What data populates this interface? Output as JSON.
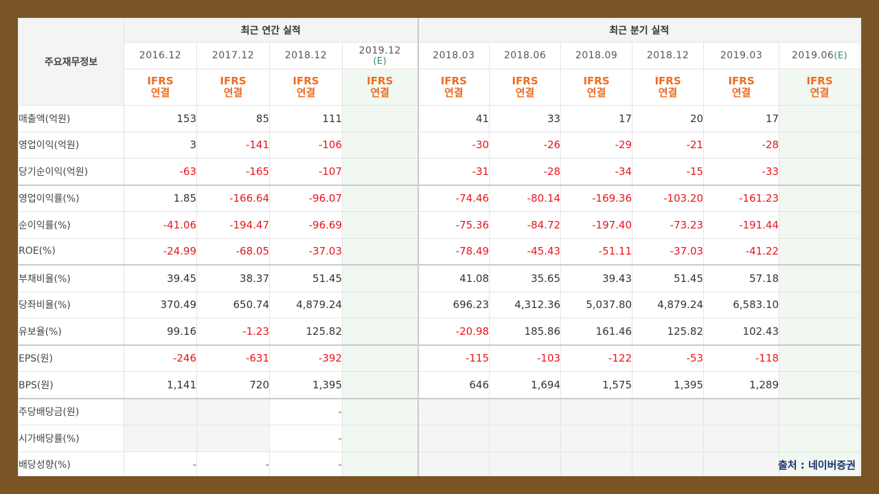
{
  "table": {
    "corner_label": "주요재무정보",
    "annual_group": "최근 연간 실적",
    "quarter_group": "최근 분기 실적",
    "periods": [
      "2016.12",
      "2017.12",
      "2018.12",
      "2019.12",
      "2018.03",
      "2018.06",
      "2018.09",
      "2018.12",
      "2019.03",
      "2019.06"
    ],
    "estimate_mark": "(E)",
    "ifrs_top": "IFRS",
    "ifrs_bottom": "연결",
    "rows": [
      {
        "label": "매출액(억원)",
        "values": [
          "153",
          "85",
          "111",
          "",
          "41",
          "33",
          "17",
          "20",
          "17",
          ""
        ]
      },
      {
        "label": "영업이익(억원)",
        "values": [
          "3",
          "-141",
          "-106",
          "",
          "-30",
          "-26",
          "-29",
          "-21",
          "-28",
          ""
        ]
      },
      {
        "label": "당기순이익(억원)",
        "values": [
          "-63",
          "-165",
          "-107",
          "",
          "-31",
          "-28",
          "-34",
          "-15",
          "-33",
          ""
        ]
      },
      {
        "label": "영업이익률(%)",
        "values": [
          "1.85",
          "-166.64",
          "-96.07",
          "",
          "-74.46",
          "-80.14",
          "-169.36",
          "-103.20",
          "-161.23",
          ""
        ]
      },
      {
        "label": "순이익률(%)",
        "values": [
          "-41.06",
          "-194.47",
          "-96.69",
          "",
          "-75.36",
          "-84.72",
          "-197.40",
          "-73.23",
          "-191.44",
          ""
        ]
      },
      {
        "label": "ROE(%)",
        "values": [
          "-24.99",
          "-68.05",
          "-37.03",
          "",
          "-78.49",
          "-45.43",
          "-51.11",
          "-37.03",
          "-41.22",
          ""
        ]
      },
      {
        "label": "부채비율(%)",
        "values": [
          "39.45",
          "38.37",
          "51.45",
          "",
          "41.08",
          "35.65",
          "39.43",
          "51.45",
          "57.18",
          ""
        ]
      },
      {
        "label": "당좌비율(%)",
        "values": [
          "370.49",
          "650.74",
          "4,879.24",
          "",
          "696.23",
          "4,312.36",
          "5,037.80",
          "4,879.24",
          "6,583.10",
          ""
        ]
      },
      {
        "label": "유보율(%)",
        "values": [
          "99.16",
          "-1.23",
          "125.82",
          "",
          "-20.98",
          "185.86",
          "161.46",
          "125.82",
          "102.43",
          ""
        ]
      },
      {
        "label": "EPS(원)",
        "values": [
          "-246",
          "-631",
          "-392",
          "",
          "-115",
          "-103",
          "-122",
          "-53",
          "-118",
          ""
        ]
      },
      {
        "label": "BPS(원)",
        "values": [
          "1,141",
          "720",
          "1,395",
          "",
          "646",
          "1,694",
          "1,575",
          "1,395",
          "1,289",
          ""
        ]
      },
      {
        "label": "주당배당금(원)",
        "values": [
          "",
          "",
          "-",
          "",
          "",
          "",
          "",
          "",
          "",
          ""
        ]
      },
      {
        "label": "시가배당률(%)",
        "values": [
          "",
          "",
          "-",
          "",
          "",
          "",
          "",
          "",
          "",
          ""
        ]
      },
      {
        "label": "배당성향(%)",
        "values": [
          "-",
          "-",
          "-",
          "",
          "",
          "",
          "",
          "",
          "",
          ""
        ]
      }
    ]
  },
  "source_note": "출처 : 네이버증권"
}
